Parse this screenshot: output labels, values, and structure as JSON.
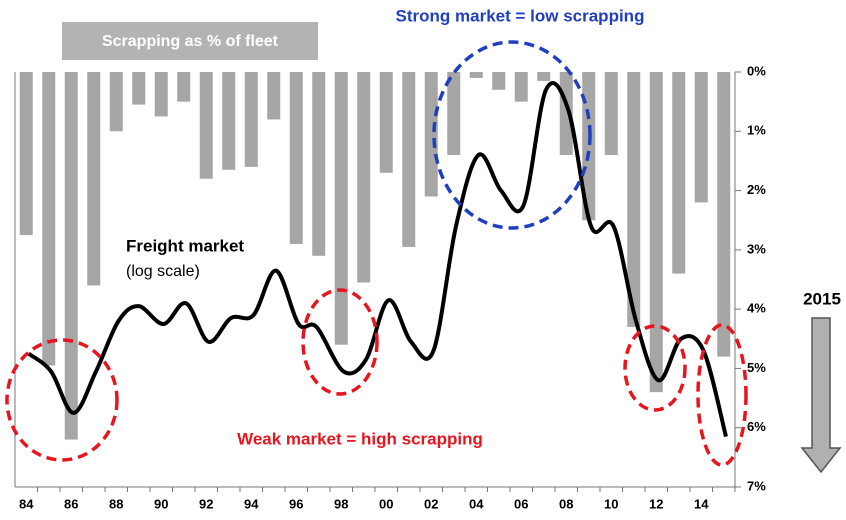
{
  "chart_data": {
    "type": "bar",
    "title": "Strong market = low scrapping",
    "annotations": [
      "Weak market = high scrapping",
      "(log scale)",
      "2015"
    ],
    "categories": [
      "84",
      null,
      "86",
      null,
      "88",
      null,
      "90",
      null,
      "92",
      null,
      "94",
      null,
      "96",
      null,
      "98",
      null,
      "00",
      null,
      "02",
      null,
      "04",
      null,
      "06",
      null,
      "08",
      null,
      "10",
      null,
      "12",
      null,
      "14",
      null
    ],
    "xlim": [
      1983.4,
      2015.4
    ],
    "ylim": [
      0,
      7
    ],
    "yticks": [
      {
        "value": 0,
        "label": "0%"
      },
      {
        "value": 1,
        "label": "1%"
      },
      {
        "value": 2,
        "label": "2%"
      },
      {
        "value": 3,
        "label": "3%"
      },
      {
        "value": 4,
        "label": "4%"
      },
      {
        "value": 5,
        "label": "5%"
      },
      {
        "value": 6,
        "label": "6%"
      },
      {
        "value": 7,
        "label": "7%"
      }
    ],
    "inverted_y": true,
    "series": [
      {
        "name": "Scrapping as % of fleet",
        "type": "bar",
        "color": "#a6a6a6",
        "values": [
          2.75,
          4.95,
          6.2,
          3.6,
          1.0,
          0.55,
          0.75,
          0.5,
          1.8,
          1.65,
          1.6,
          0.8,
          2.9,
          3.1,
          4.6,
          3.55,
          1.7,
          2.95,
          2.1,
          1.4,
          0.1,
          0.3,
          0.5,
          0.15,
          1.4,
          2.5,
          1.4,
          4.3,
          5.4,
          3.4,
          2.2,
          4.8
        ]
      },
      {
        "name": "Freight market",
        "type": "line",
        "color": "#000000",
        "x": [
          1984,
          1985,
          1986,
          1987,
          1988,
          1988.9,
          1990,
          1991,
          1992,
          1993,
          1994,
          1995,
          1996,
          1996.8,
          1998,
          1999,
          2000,
          2001,
          2002,
          2003,
          2004,
          2005,
          2006,
          2007,
          2008,
          2009,
          2010,
          2011,
          2012,
          2013,
          2014,
          2015
        ],
        "values": [
          4.75,
          5.05,
          5.75,
          5.05,
          4.2,
          3.95,
          4.25,
          3.9,
          4.55,
          4.15,
          4.1,
          3.35,
          4.25,
          4.3,
          5.05,
          4.85,
          3.85,
          4.55,
          4.7,
          2.6,
          1.4,
          2.0,
          2.25,
          0.3,
          0.65,
          2.6,
          2.6,
          4.2,
          5.2,
          4.5,
          4.7,
          6.15
        ]
      }
    ]
  }
}
